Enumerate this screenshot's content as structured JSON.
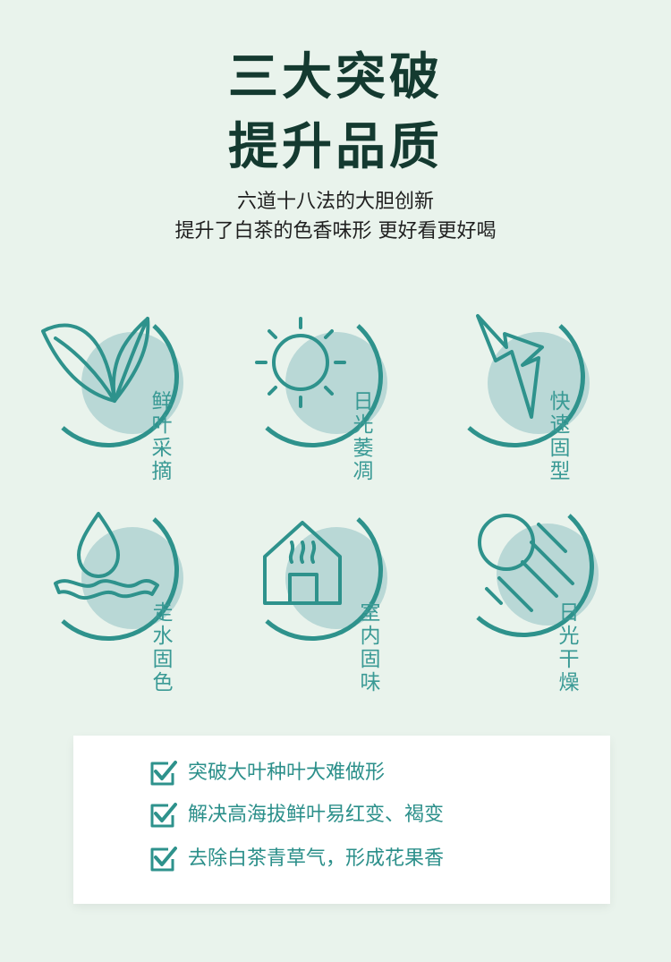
{
  "header": {
    "title_line1": "三大突破",
    "title_line2": "提升品质",
    "subtitle_line1": "六道十八法的大胆创新",
    "subtitle_line2": "提升了白茶的色香味形 更好看更好喝"
  },
  "features": [
    {
      "label": "鲜叶采摘",
      "icon": "leaves-icon"
    },
    {
      "label": "日光萎凋",
      "icon": "sun-icon"
    },
    {
      "label": "快速固型",
      "icon": "lightning-icon"
    },
    {
      "label": "走水固色",
      "icon": "water-drop-icon"
    },
    {
      "label": "室内固味",
      "icon": "house-steam-icon"
    },
    {
      "label": "日光干燥",
      "icon": "sun-rays-icon"
    }
  ],
  "benefits": [
    {
      "text": "突破大叶种叶大难做形",
      "icon": "checkbox-icon"
    },
    {
      "text": "解决高海拔鲜叶易红变、褐变",
      "icon": "checkbox-icon"
    },
    {
      "text": "去除白茶青草气，形成花果香",
      "icon": "checkbox-icon"
    }
  ],
  "colors": {
    "background": "#e9f3ec",
    "accent": "#2e928c",
    "circle_fill": "#b9d8d6",
    "title": "#143a30"
  }
}
